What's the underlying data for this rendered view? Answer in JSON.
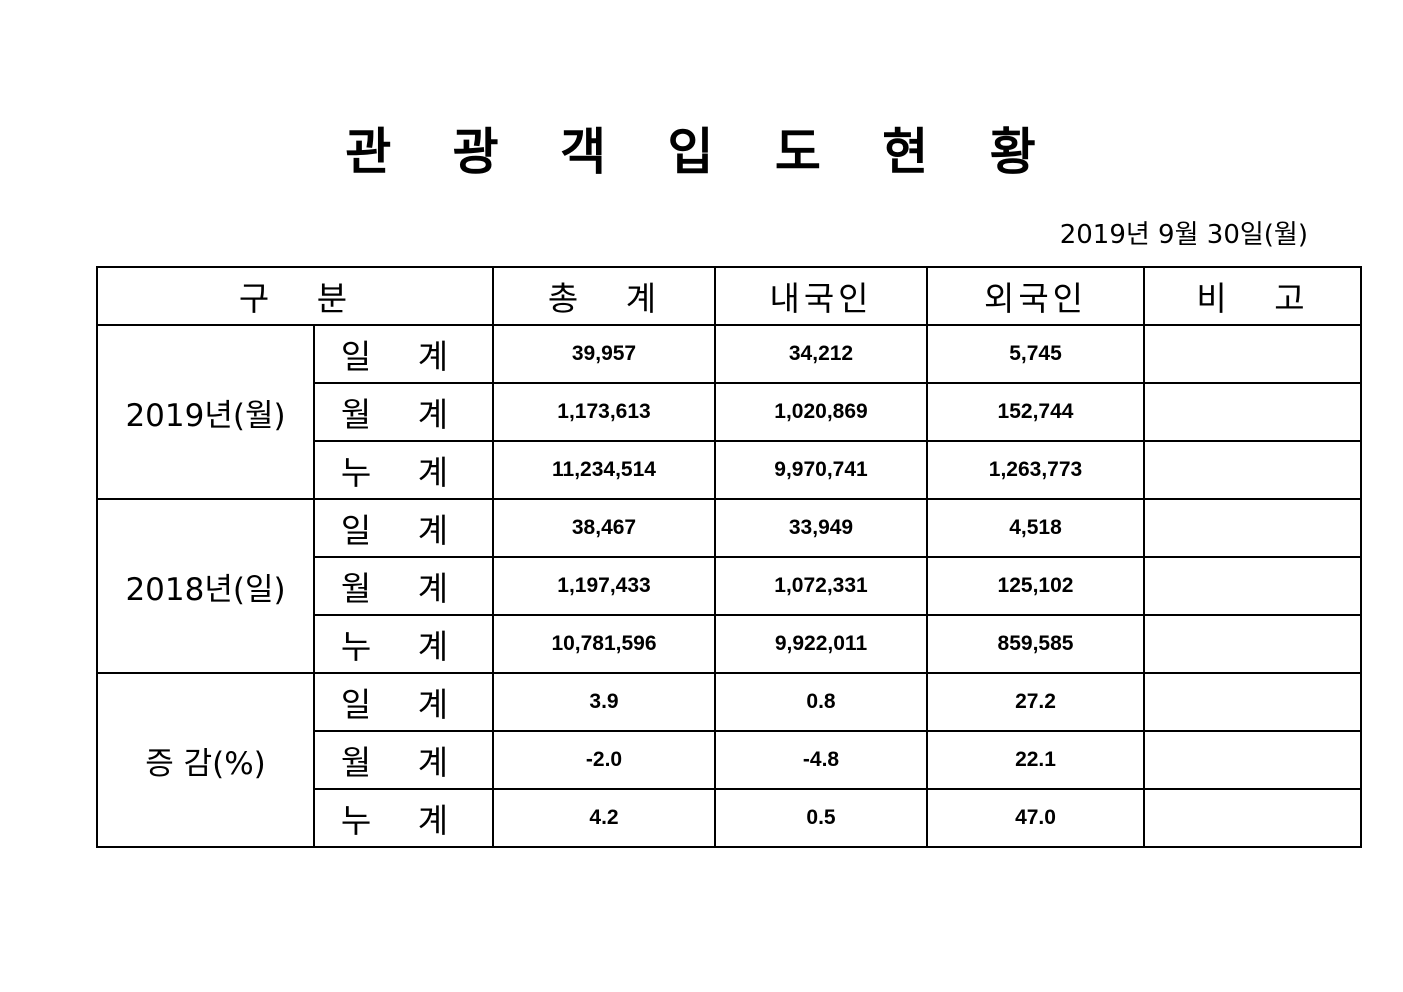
{
  "title": "관 광 객 입 도 현 황",
  "date": "2019년 9월 30일(월)",
  "headers": {
    "category": "구   분",
    "total": "총   계",
    "domestic": "내국인",
    "foreign": "외국인",
    "note": "비   고"
  },
  "groups": [
    {
      "label": "2019년(월)",
      "rows": [
        {
          "label": "일 계",
          "total": "39,957",
          "domestic": "34,212",
          "foreign": "5,745",
          "note": ""
        },
        {
          "label": "월 계",
          "total": "1,173,613",
          "domestic": "1,020,869",
          "foreign": "152,744",
          "note": ""
        },
        {
          "label": "누 계",
          "total": "11,234,514",
          "domestic": "9,970,741",
          "foreign": "1,263,773",
          "note": ""
        }
      ]
    },
    {
      "label": "2018년(일)",
      "rows": [
        {
          "label": "일 계",
          "total": "38,467",
          "domestic": "33,949",
          "foreign": "4,518",
          "note": ""
        },
        {
          "label": "월 계",
          "total": "1,197,433",
          "domestic": "1,072,331",
          "foreign": "125,102",
          "note": ""
        },
        {
          "label": "누 계",
          "total": "10,781,596",
          "domestic": "9,922,011",
          "foreign": "859,585",
          "note": ""
        }
      ]
    },
    {
      "label": "증 감(%)",
      "rows": [
        {
          "label": "일 계",
          "total": "3.9",
          "domestic": "0.8",
          "foreign": "27.2",
          "note": ""
        },
        {
          "label": "월 계",
          "total": "-2.0",
          "domestic": "-4.8",
          "foreign": "22.1",
          "note": ""
        },
        {
          "label": "누 계",
          "total": "4.2",
          "domestic": "0.5",
          "foreign": "47.0",
          "note": ""
        }
      ]
    }
  ]
}
